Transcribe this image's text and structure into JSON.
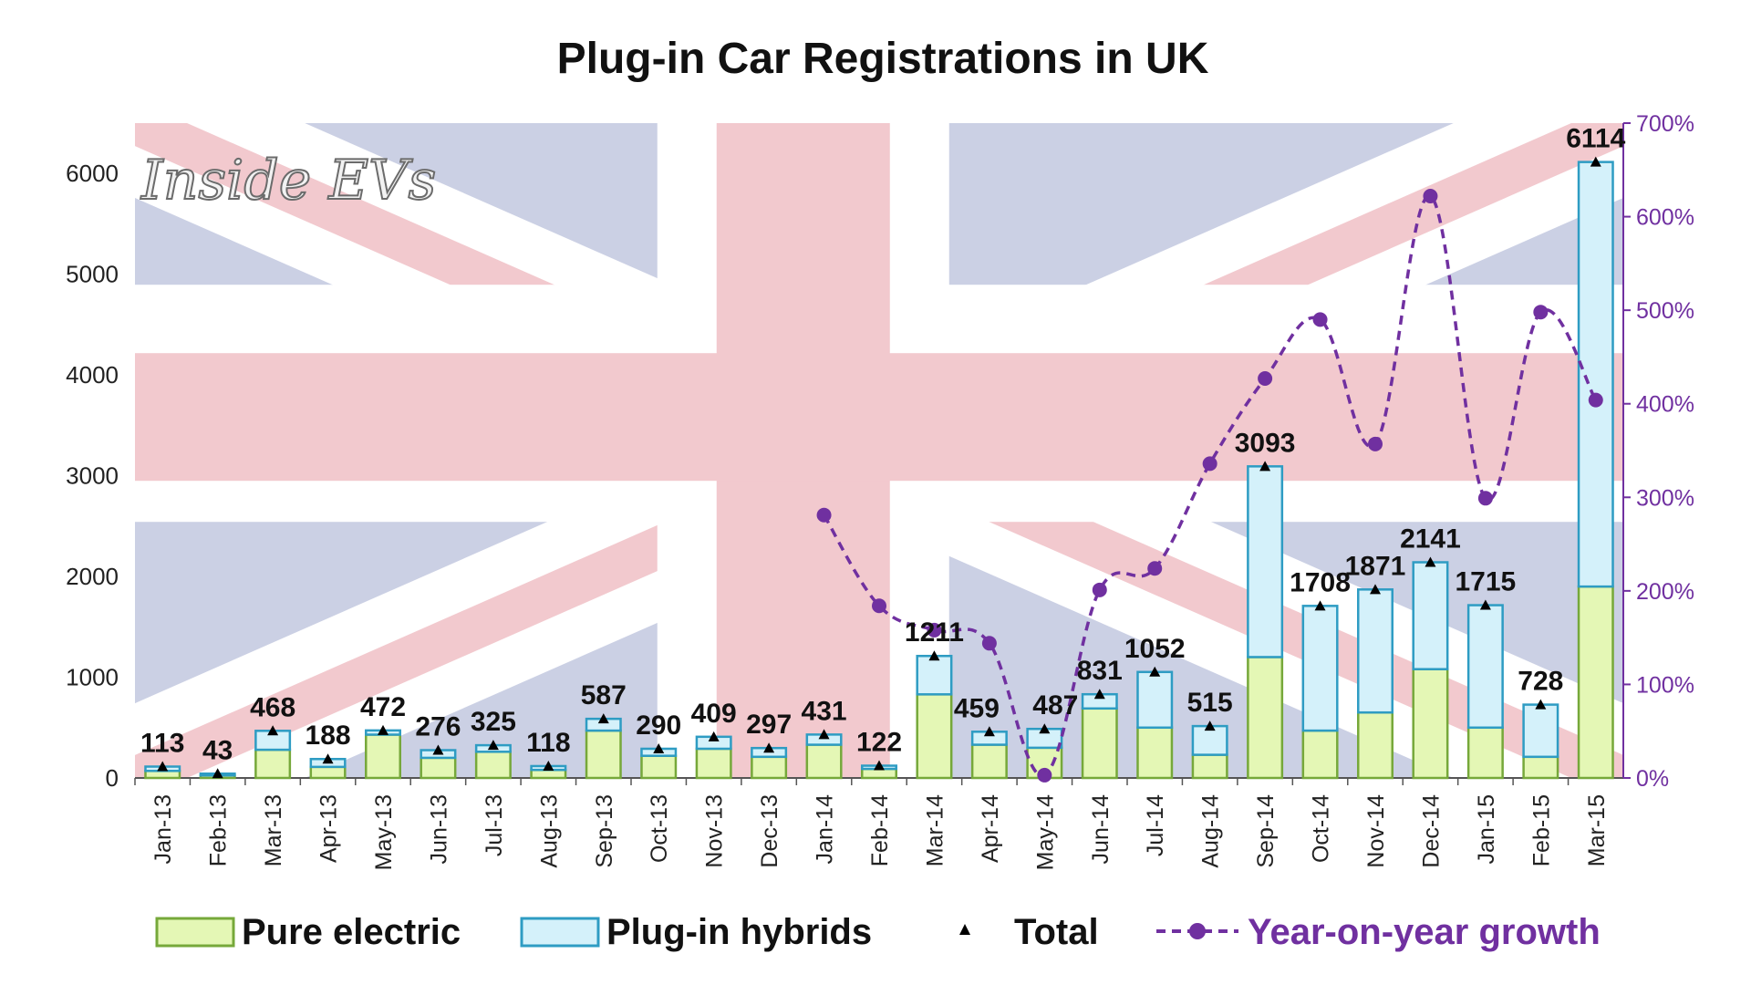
{
  "watermark": "Inside EVs",
  "colors": {
    "pure_electric_fill": "#E4F7B5",
    "pure_electric_stroke": "#76A83A",
    "hybrid_fill": "#D4F1FA",
    "hybrid_stroke": "#2E9CC3",
    "growth_line": "#7030A0",
    "flag_blue": "#CBD0E4",
    "flag_red": "#F2C9CE"
  },
  "legend": {
    "pure_electric": "Pure electric",
    "plugin_hybrids": "Plug-in hybrids",
    "total": "Total",
    "growth": "Year-on-year growth"
  },
  "chart_data": {
    "type": "bar",
    "title": "Plug-in Car Registrations in UK",
    "categories": [
      "Jan-13",
      "Feb-13",
      "Mar-13",
      "Apr-13",
      "May-13",
      "Jun-13",
      "Jul-13",
      "Aug-13",
      "Sep-13",
      "Oct-13",
      "Nov-13",
      "Dec-13",
      "Jan-14",
      "Feb-14",
      "Mar-14",
      "Apr-14",
      "May-14",
      "Jun-14",
      "Jul-14",
      "Aug-14",
      "Sep-14",
      "Oct-14",
      "Nov-14",
      "Dec-14",
      "Jan-15",
      "Feb-15",
      "Mar-15"
    ],
    "stacked": true,
    "series": [
      {
        "name": "Pure electric",
        "values": [
          70,
          25,
          280,
          110,
          430,
          200,
          260,
          80,
          470,
          220,
          290,
          210,
          330,
          90,
          830,
          330,
          300,
          690,
          500,
          230,
          1200,
          470,
          650,
          1080,
          500,
          210,
          1900
        ]
      },
      {
        "name": "Plug-in hybrids",
        "values": [
          43,
          18,
          188,
          78,
          42,
          76,
          65,
          38,
          117,
          70,
          119,
          87,
          101,
          32,
          381,
          129,
          187,
          141,
          552,
          285,
          1893,
          1238,
          1221,
          1061,
          1215,
          518,
          4214
        ]
      }
    ],
    "totals": [
      113,
      43,
      468,
      188,
      472,
      276,
      325,
      118,
      587,
      290,
      409,
      297,
      431,
      122,
      1211,
      459,
      487,
      831,
      1052,
      515,
      3093,
      1708,
      1871,
      2141,
      1715,
      728,
      6114
    ],
    "growth_series": {
      "name": "Year-on-year growth",
      "axis": "right",
      "values": [
        null,
        null,
        null,
        null,
        null,
        null,
        null,
        null,
        null,
        null,
        null,
        null,
        281,
        184,
        158,
        144,
        3,
        201,
        224,
        336,
        427,
        490,
        357,
        622,
        299,
        498,
        404
      ]
    },
    "ylim": [
      0,
      6500
    ],
    "yticks": [
      0,
      1000,
      2000,
      3000,
      4000,
      5000,
      6000
    ],
    "y2lim": [
      0,
      700
    ],
    "y2ticks": [
      "0%",
      "100%",
      "200%",
      "300%",
      "400%",
      "500%",
      "600%",
      "700%"
    ],
    "xlabel": "",
    "ylabel": "",
    "legend_position": "bottom",
    "grid": false
  }
}
